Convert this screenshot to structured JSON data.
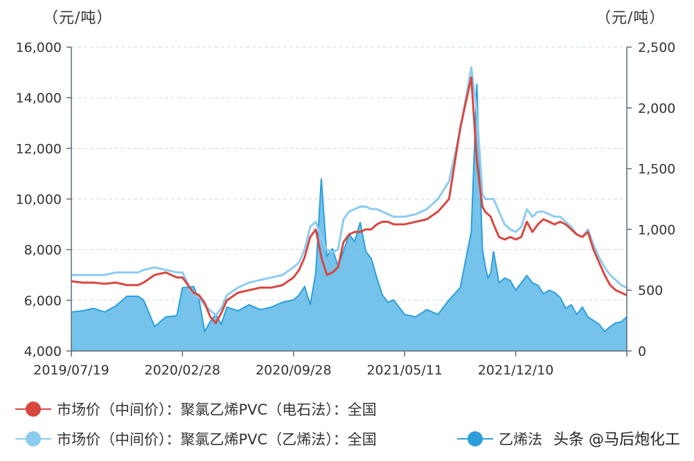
{
  "colors": {
    "calcium_carbide": "#d9463e",
    "ethylene": "#8ccbf0",
    "ethylene_spread": "#2b9edb",
    "area_fill": "#5db8e8",
    "grid": "#c9d8e6",
    "axis": "#5a6a7a"
  },
  "chart_data": {
    "type": "line",
    "left_unit": "（元/吨）",
    "right_unit": "（元/吨）",
    "x_ticks": [
      "2019/07/19",
      "2020/02/28",
      "2020/09/28",
      "2021/05/11",
      "2021/12/10"
    ],
    "x_tick_positions": [
      0,
      0.2,
      0.4,
      0.6,
      0.8
    ],
    "left_axis": {
      "min": 4000,
      "max": 16000,
      "ticks": [
        "4,000",
        "6,000",
        "8,000",
        "10,000",
        "12,000",
        "14,000",
        "16,000"
      ]
    },
    "right_axis": {
      "min": 0,
      "max": 2500,
      "ticks": [
        "0",
        "500",
        "1,000",
        "1,500",
        "2,000",
        "2,500"
      ]
    },
    "x": [
      0,
      0.02,
      0.04,
      0.06,
      0.08,
      0.1,
      0.12,
      0.13,
      0.15,
      0.17,
      0.19,
      0.2,
      0.22,
      0.23,
      0.24,
      0.25,
      0.26,
      0.27,
      0.28,
      0.3,
      0.32,
      0.34,
      0.36,
      0.38,
      0.4,
      0.41,
      0.42,
      0.43,
      0.44,
      0.45,
      0.46,
      0.47,
      0.48,
      0.49,
      0.5,
      0.51,
      0.52,
      0.53,
      0.54,
      0.55,
      0.56,
      0.57,
      0.58,
      0.6,
      0.62,
      0.64,
      0.66,
      0.68,
      0.7,
      0.72,
      0.73,
      0.74,
      0.745,
      0.75,
      0.755,
      0.76,
      0.77,
      0.78,
      0.79,
      0.8,
      0.81,
      0.82,
      0.83,
      0.84,
      0.85,
      0.86,
      0.87,
      0.88,
      0.89,
      0.9,
      0.91,
      0.92,
      0.93,
      0.94,
      0.95,
      0.96,
      0.97,
      0.98,
      0.99,
      1.0
    ],
    "series": [
      {
        "name": "市场价（中间价）：聚氯乙烯PVC（电石法）：全国",
        "axis": "left",
        "values": [
          6750,
          6700,
          6700,
          6650,
          6700,
          6600,
          6600,
          6700,
          7000,
          7100,
          6900,
          6900,
          6300,
          6200,
          5900,
          5350,
          5100,
          5500,
          6000,
          6300,
          6400,
          6500,
          6500,
          6600,
          6900,
          7200,
          7700,
          8500,
          8800,
          7700,
          7000,
          7100,
          7300,
          8300,
          8600,
          8700,
          8700,
          8800,
          8800,
          9000,
          9100,
          9100,
          9000,
          9000,
          9100,
          9200,
          9500,
          10000,
          12800,
          14800,
          11500,
          9700,
          9500,
          9400,
          9300,
          9000,
          8500,
          8400,
          8500,
          8400,
          8500,
          9100,
          8700,
          9000,
          9200,
          9100,
          9000,
          9100,
          9000,
          8800,
          8600,
          8500,
          8700,
          8000,
          7500,
          7000,
          6600,
          6400,
          6300,
          6200
        ]
      },
      {
        "name": "市场价（中间价）：聚氯乙烯PVC（乙烯法）：全国",
        "axis": "left",
        "values": [
          7000,
          7000,
          7000,
          7000,
          7100,
          7100,
          7100,
          7200,
          7300,
          7200,
          7100,
          7100,
          6200,
          6100,
          5800,
          5600,
          5400,
          5700,
          6200,
          6500,
          6700,
          6800,
          6900,
          7000,
          7300,
          7500,
          8000,
          8900,
          9100,
          8500,
          8000,
          7900,
          8000,
          9200,
          9500,
          9600,
          9700,
          9700,
          9600,
          9600,
          9500,
          9400,
          9300,
          9300,
          9400,
          9600,
          10000,
          10700,
          12700,
          15200,
          13500,
          10200,
          10000,
          10000,
          10000,
          10000,
          9500,
          9000,
          8800,
          8700,
          8900,
          9600,
          9300,
          9500,
          9500,
          9400,
          9300,
          9300,
          9100,
          8900,
          8600,
          8500,
          8800,
          8200,
          7700,
          7300,
          7000,
          6800,
          6600,
          6500
        ]
      },
      {
        "name": "乙烯法-电石法价差",
        "axis": "right",
        "type": "area",
        "values": [
          320,
          330,
          350,
          320,
          370,
          450,
          450,
          420,
          200,
          280,
          290,
          520,
          530,
          420,
          160,
          240,
          300,
          220,
          360,
          330,
          380,
          340,
          360,
          400,
          420,
          460,
          530,
          380,
          640,
          1420,
          780,
          840,
          700,
          820,
          960,
          900,
          1060,
          820,
          760,
          600,
          460,
          400,
          420,
          300,
          280,
          340,
          300,
          420,
          520,
          980,
          2200,
          840,
          700,
          600,
          640,
          820,
          560,
          600,
          580,
          500,
          560,
          620,
          560,
          540,
          470,
          500,
          480,
          440,
          350,
          380,
          300,
          360,
          280,
          250,
          220,
          160,
          200,
          230,
          240,
          280
        ]
      }
    ],
    "legend": [
      "市场价（中间价）：聚氯乙烯PVC（电石法）：全国",
      "市场价（中间价）：聚氯乙烯PVC（乙烯法）：全国",
      "乙烯法"
    ],
    "grid": "horizontal dashed",
    "legend_position": "bottom"
  },
  "watermark": "头条 @马后炮化工"
}
